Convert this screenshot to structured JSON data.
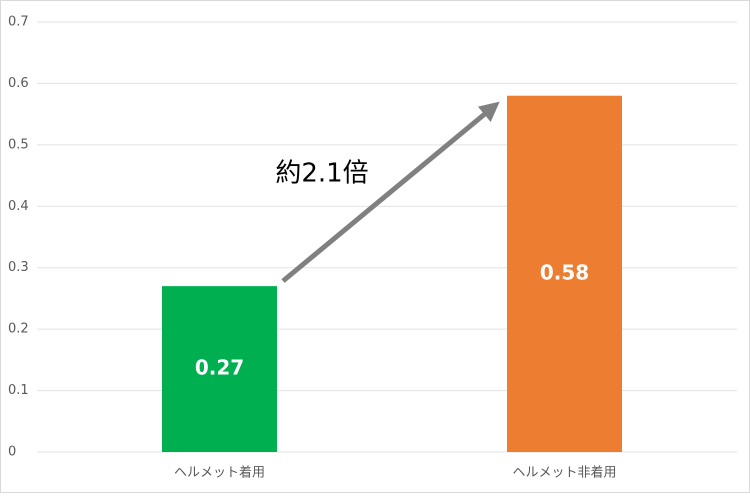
{
  "chart_data": {
    "type": "bar",
    "categories": [
      "ヘルメット着用",
      "ヘルメット非着用"
    ],
    "values": [
      0.27,
      0.58
    ],
    "colors": [
      "#00b050",
      "#ed7d31"
    ],
    "ylim": [
      0,
      0.7
    ],
    "yticks": [
      0,
      0.1,
      0.2,
      0.3,
      0.4,
      0.5,
      0.6,
      0.7
    ],
    "grid": true,
    "annotation": "約2.1倍"
  }
}
